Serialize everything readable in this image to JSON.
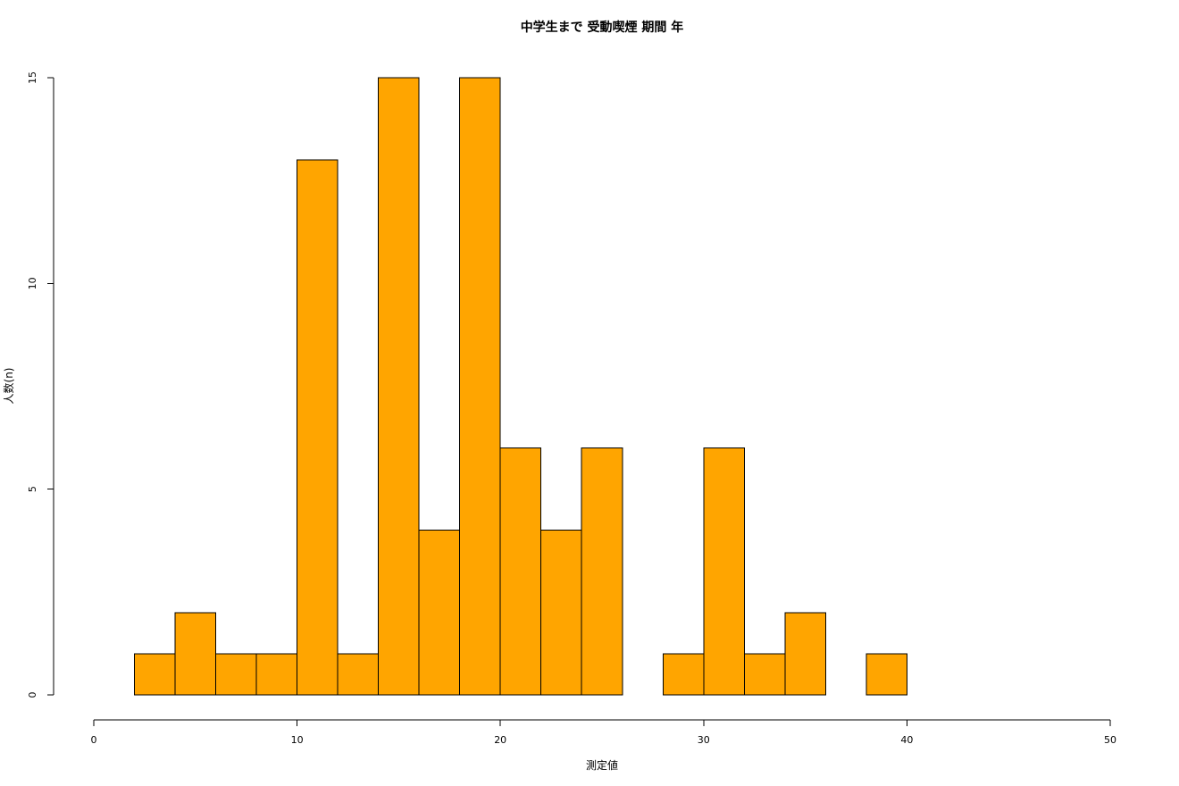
{
  "chart_data": {
    "type": "bar",
    "title": "中学生まで 受動喫煙 期間 年",
    "xlabel": "測定値",
    "ylabel": "人数(n)",
    "bar_color": "#FFA500",
    "border_color": "#000000",
    "bin_width": 2,
    "bins": [
      {
        "start": 2,
        "end": 4,
        "count": 1
      },
      {
        "start": 4,
        "end": 6,
        "count": 2
      },
      {
        "start": 6,
        "end": 8,
        "count": 1
      },
      {
        "start": 8,
        "end": 10,
        "count": 1
      },
      {
        "start": 10,
        "end": 12,
        "count": 13
      },
      {
        "start": 12,
        "end": 14,
        "count": 1
      },
      {
        "start": 14,
        "end": 16,
        "count": 15
      },
      {
        "start": 16,
        "end": 18,
        "count": 4
      },
      {
        "start": 18,
        "end": 20,
        "count": 15
      },
      {
        "start": 20,
        "end": 22,
        "count": 6
      },
      {
        "start": 22,
        "end": 24,
        "count": 4
      },
      {
        "start": 24,
        "end": 26,
        "count": 6
      },
      {
        "start": 26,
        "end": 28,
        "count": 0
      },
      {
        "start": 28,
        "end": 30,
        "count": 1
      },
      {
        "start": 30,
        "end": 32,
        "count": 6
      },
      {
        "start": 32,
        "end": 34,
        "count": 1
      },
      {
        "start": 34,
        "end": 36,
        "count": 2
      },
      {
        "start": 36,
        "end": 38,
        "count": 0
      },
      {
        "start": 38,
        "end": 40,
        "count": 1
      }
    ],
    "xlim": [
      0,
      50
    ],
    "ylim": [
      0,
      15
    ],
    "x_ticks": [
      "0",
      "10",
      "20",
      "30",
      "40",
      "50"
    ],
    "y_ticks": [
      "0",
      "5",
      "10",
      "15"
    ],
    "grid": false,
    "legend": "none"
  }
}
